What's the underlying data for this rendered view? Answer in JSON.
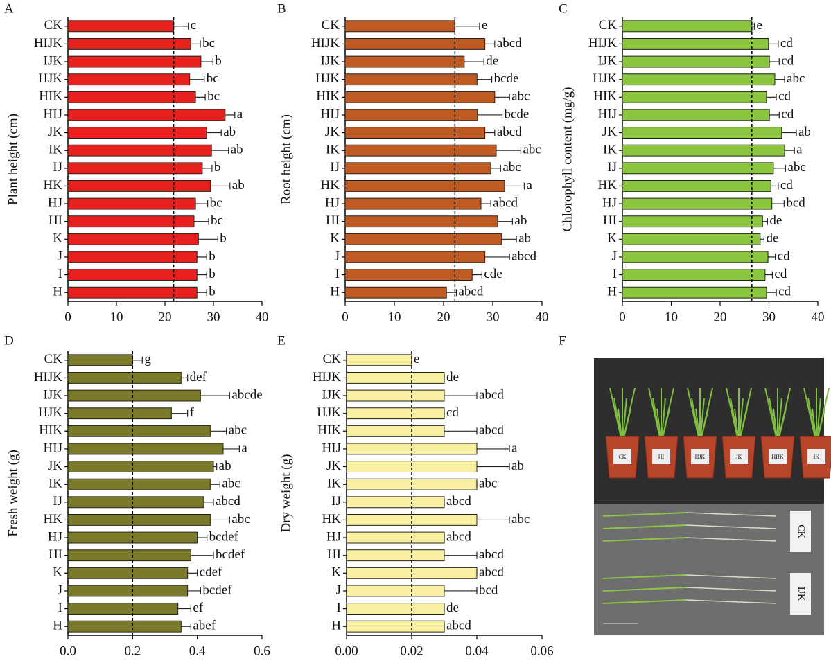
{
  "chart_data": [
    {
      "type": "bar",
      "orientation": "horizontal",
      "panel": "A",
      "ylabel": "Plant height (cm)",
      "color": "#e8211e",
      "categories": [
        "CK",
        "HIJK",
        "IJK",
        "HJK",
        "HIK",
        "HIJ",
        "JK",
        "IK",
        "IJ",
        "HK",
        "HJ",
        "HI",
        "K",
        "J",
        "I",
        "H"
      ],
      "values": [
        21.8,
        25.3,
        27.4,
        25.1,
        26.3,
        32.4,
        28.6,
        29.6,
        27.7,
        29.4,
        26.3,
        26,
        26.9,
        26.6,
        26.6,
        26.6
      ],
      "errors": [
        3,
        2,
        2.5,
        3,
        2,
        2,
        3,
        3.5,
        2,
        4,
        2.5,
        3,
        4,
        2,
        2,
        2
      ],
      "annotations": [
        "c",
        "bc",
        "b",
        "bc",
        "bc",
        "a",
        "ab",
        "ab",
        "b",
        "ab",
        "bc",
        "bc",
        "b",
        "b",
        "b",
        "b"
      ],
      "xlim": [
        0,
        40
      ],
      "xticks": [
        0,
        10,
        20,
        30,
        40
      ]
    },
    {
      "type": "bar",
      "orientation": "horizontal",
      "panel": "B",
      "ylabel": "Root height (cm)",
      "color": "#bf5a22",
      "categories": [
        "CK",
        "HIJK",
        "IJK",
        "HJK",
        "HIK",
        "HIJ",
        "JK",
        "IK",
        "IJ",
        "HK",
        "HJ",
        "HI",
        "K",
        "J",
        "I",
        "H"
      ],
      "values": [
        22.3,
        28.4,
        24.2,
        26.8,
        30.4,
        26.9,
        28.4,
        30.7,
        29.6,
        32.4,
        27.6,
        31,
        31.8,
        28.4,
        25.8,
        20.6
      ],
      "errors": [
        5,
        2,
        4,
        3,
        3,
        5,
        2,
        5,
        2,
        4,
        2,
        3,
        3,
        5,
        2,
        2
      ],
      "annotations": [
        "e",
        "abcd",
        "de",
        "bcde",
        "abc",
        "bcde",
        "abcd",
        "abc",
        "abc",
        "a",
        "abcd",
        "ab",
        "ab",
        "abcd",
        "cde",
        "abcd"
      ],
      "xlim": [
        0,
        40
      ],
      "xticks": [
        0,
        10,
        20,
        30,
        40
      ]
    },
    {
      "type": "bar",
      "orientation": "horizontal",
      "panel": "C",
      "ylabel": "Chlorophyll content (mg/g)",
      "color": "#8cc63e",
      "categories": [
        "CK",
        "HIJK",
        "IJK",
        "HJK",
        "HIK",
        "HIJ",
        "JK",
        "IK",
        "IJ",
        "HK",
        "HJ",
        "HI",
        "K",
        "J",
        "I",
        "H"
      ],
      "values": [
        26.5,
        29.9,
        30.1,
        31.2,
        29.5,
        30.1,
        32.6,
        33.2,
        30.9,
        30.4,
        30.6,
        28.7,
        28.2,
        29.8,
        29.2,
        29.5
      ],
      "errors": [
        0.5,
        2,
        2,
        2,
        2,
        2,
        3,
        2,
        2.5,
        1.5,
        2.5,
        1,
        0.8,
        1.5,
        1.5,
        2
      ],
      "annotations": [
        "e",
        "cd",
        "cd",
        "abc",
        "cd",
        "cd",
        "ab",
        "a",
        "abc",
        "cd",
        "bcd",
        "de",
        "de",
        "cd",
        "cd",
        "cd"
      ],
      "xlim": [
        0,
        40
      ],
      "xticks": [
        0,
        10,
        20,
        30,
        40
      ]
    },
    {
      "type": "bar",
      "orientation": "horizontal",
      "panel": "D",
      "ylabel": "Fresh weight (g)",
      "color": "#7a7a2a",
      "categories": [
        "CK",
        "HIJK",
        "IJK",
        "HJK",
        "HIK",
        "HIJ",
        "JK",
        "IK",
        "IJ",
        "HK",
        "HJ",
        "HI",
        "K",
        "J",
        "I",
        "H"
      ],
      "values": [
        0.2,
        0.35,
        0.41,
        0.32,
        0.44,
        0.48,
        0.45,
        0.44,
        0.42,
        0.44,
        0.4,
        0.38,
        0.37,
        0.37,
        0.34,
        0.35
      ],
      "errors": [
        0.03,
        0.02,
        0.09,
        0.05,
        0.05,
        0.05,
        0.01,
        0.03,
        0.03,
        0.06,
        0.03,
        0.07,
        0.03,
        0.04,
        0.04,
        0.03
      ],
      "annotations": [
        "g",
        "def",
        "abcde",
        "f",
        "abc",
        "a",
        "ab",
        "abc",
        "abcd",
        "abc",
        "bcdef",
        "bcdef",
        "cdef",
        "bcdef",
        "ef",
        "abef"
      ],
      "xlim": [
        0,
        0.6
      ],
      "xticks": [
        {
          "value": 0,
          "label": "0.0"
        },
        0.2,
        0.4,
        0.6
      ]
    },
    {
      "type": "bar",
      "orientation": "horizontal",
      "panel": "E",
      "ylabel": "Dry weight (g)",
      "color": "#f8f0a0",
      "categories": [
        "CK",
        "HIJK",
        "IJK",
        "HJK",
        "HIK",
        "HIJ",
        "JK",
        "IK",
        "IJ",
        "HK",
        "HJ",
        "HI",
        "K",
        "J",
        "I",
        "H"
      ],
      "values": [
        0.02,
        0.03,
        0.03,
        0.03,
        0.03,
        0.04,
        0.04,
        0.04,
        0.03,
        0.04,
        0.03,
        0.03,
        0.04,
        0.03,
        0.03,
        0.03
      ],
      "errors": [
        0,
        0,
        0.01,
        0,
        0.01,
        0.01,
        0.01,
        0,
        0,
        0.01,
        0,
        0.01,
        0,
        0.01,
        0,
        0
      ],
      "annotations": [
        "e",
        "de",
        "abcd",
        "cd",
        "abcd",
        "a",
        "ab",
        "abc",
        "abcd",
        "abc",
        "abcd",
        "abcd",
        "abcd",
        "bcd",
        "de",
        "abcd"
      ],
      "xlim": [
        0,
        0.06
      ],
      "xticks": [
        {
          "value": 0,
          "label": "0.00"
        },
        {
          "value": 0.02,
          "label": "0.02"
        },
        {
          "value": 0.04,
          "label": "0.04"
        },
        {
          "value": 0.06,
          "label": "0.06"
        }
      ]
    }
  ],
  "photo": {
    "panel": "F",
    "pot_labels": [
      "CK",
      "HI",
      "HJK",
      "JK",
      "HIJK",
      "IK"
    ],
    "side_labels": [
      "CK",
      "IJK"
    ]
  }
}
